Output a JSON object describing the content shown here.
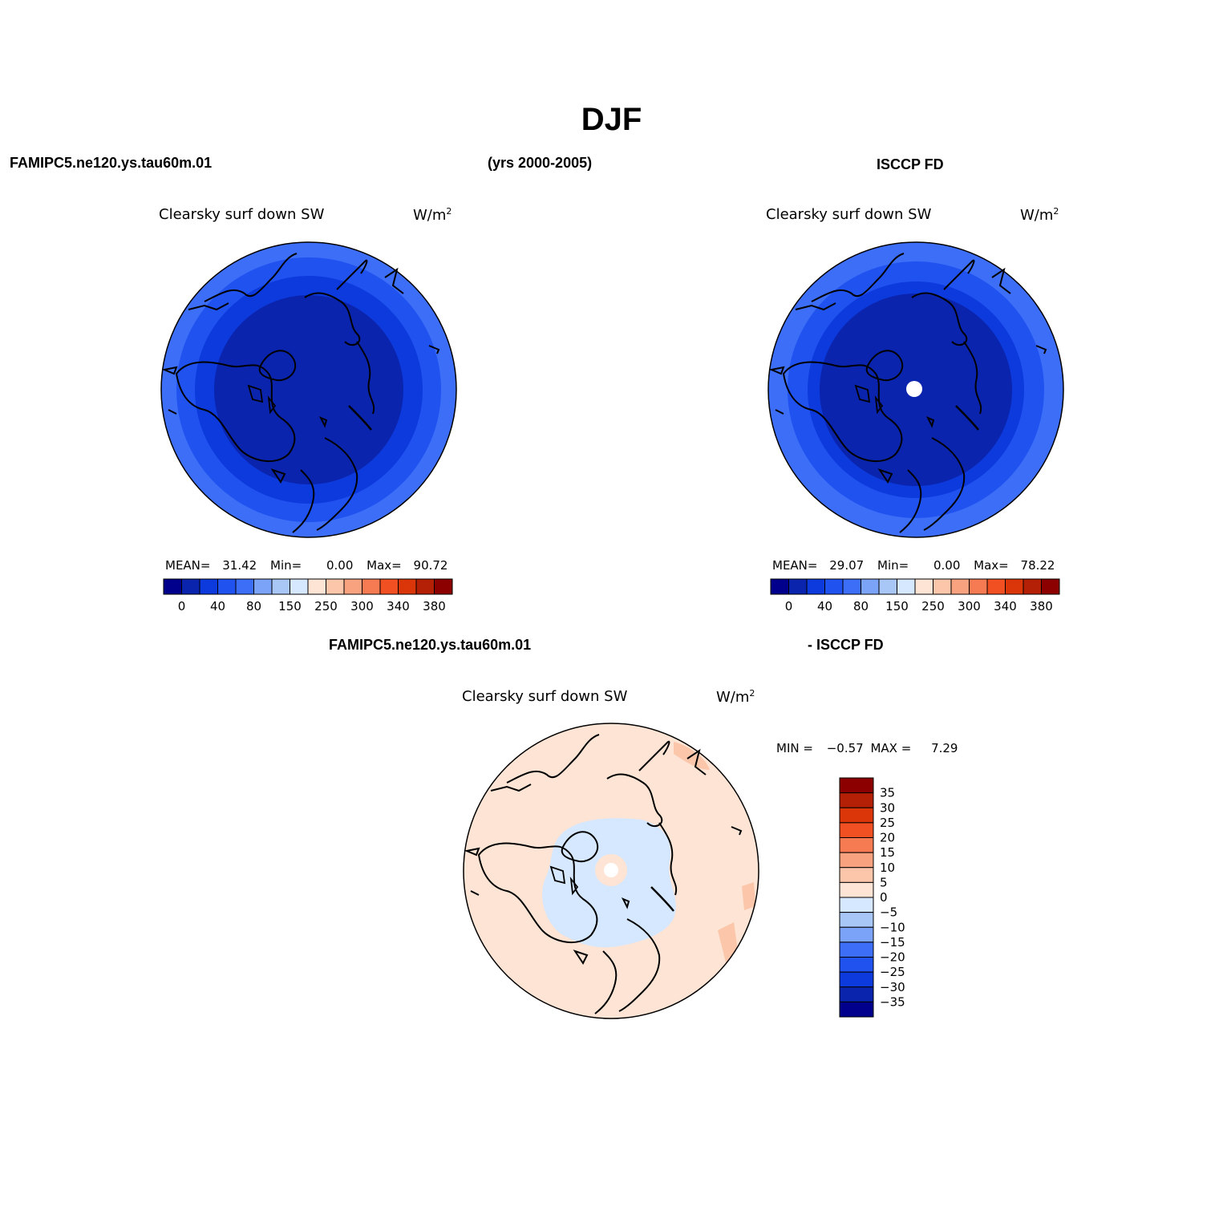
{
  "header": {
    "title": "DJF",
    "case_name": "FAMIPC5.ne120.ys.tau60m.01",
    "years": "(yrs 2000-2005)",
    "obs_name": "ISCCP FD"
  },
  "diff_header": {
    "left": "FAMIPC5.ne120.ys.tau60m.01",
    "right": "- ISCCP FD"
  },
  "colors": {
    "main_scale": [
      "#00008c",
      "#0a24ad",
      "#0d3adc",
      "#2052f0",
      "#3d6ef7",
      "#7ba4f8",
      "#a8c6f6",
      "#d6e8ff",
      "#fde4d4",
      "#fbc6aa",
      "#f8a27f",
      "#f67a52",
      "#f15122",
      "#db3609",
      "#b32005",
      "#8c0000"
    ],
    "diff_scale": [
      "#00008c",
      "#0a24ad",
      "#0d3adc",
      "#2052f0",
      "#3d6ef7",
      "#7ba4f8",
      "#a8c6f6",
      "#d6e8ff",
      "#fde4d4",
      "#fbc6aa",
      "#f8a27f",
      "#f67a52",
      "#f15122",
      "#db3609",
      "#b32005",
      "#8c0000"
    ]
  },
  "panels": [
    {
      "id": "model",
      "variable": "Clearsky surf down SW",
      "units": "W/m",
      "units_sup": "2",
      "mean_label": "MEAN=",
      "mean": "31.42",
      "min_label": "Min=",
      "min": "0.00",
      "max_label": "Max=",
      "max": "90.72",
      "ticks": [
        "0",
        "40",
        "80",
        "150",
        "250",
        "300",
        "340",
        "380"
      ]
    },
    {
      "id": "obs",
      "variable": "Clearsky surf down SW",
      "units": "W/m",
      "units_sup": "2",
      "mean_label": "MEAN=",
      "mean": "29.07",
      "min_label": "Min=",
      "min": "0.00",
      "max_label": "Max=",
      "max": "78.22",
      "ticks": [
        "0",
        "40",
        "80",
        "150",
        "250",
        "300",
        "340",
        "380"
      ]
    }
  ],
  "diff_panel": {
    "variable": "Clearsky surf down SW",
    "units": "W/m",
    "units_sup": "2",
    "min_label": "MIN =",
    "min": "−0.57",
    "max_label": "MAX =",
    "max": "7.29",
    "ticks": [
      "35",
      "30",
      "25",
      "20",
      "15",
      "10",
      "5",
      "0",
      "−5",
      "−10",
      "−15",
      "−20",
      "−25",
      "−30",
      "−35"
    ]
  }
}
